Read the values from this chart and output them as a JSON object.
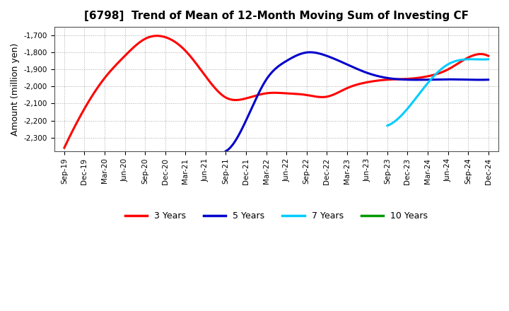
{
  "title": "[6798]  Trend of Mean of 12-Month Moving Sum of Investing CF",
  "ylabel": "Amount (million yen)",
  "ylim": [
    -2380,
    -1650
  ],
  "yticks": [
    -2300,
    -2200,
    -2100,
    -2000,
    -1900,
    -1800,
    -1700
  ],
  "background_color": "#ffffff",
  "grid_color": "#aaaaaa",
  "legend_labels": [
    "3 Years",
    "5 Years",
    "7 Years",
    "10 Years"
  ],
  "legend_colors": [
    "#ff0000",
    "#0000cc",
    "#00ccff",
    "#009900"
  ],
  "x_labels": [
    "Sep-19",
    "Dec-19",
    "Mar-20",
    "Jun-20",
    "Sep-20",
    "Dec-20",
    "Mar-21",
    "Jun-21",
    "Sep-21",
    "Dec-21",
    "Mar-22",
    "Jun-22",
    "Sep-22",
    "Dec-22",
    "Mar-23",
    "Jun-23",
    "Sep-23",
    "Dec-23",
    "Mar-24",
    "Jun-24",
    "Sep-24",
    "Dec-24"
  ],
  "series_3y_x": [
    0,
    1,
    2,
    3,
    4,
    5,
    6,
    7,
    8,
    9,
    10,
    11,
    12,
    13,
    14,
    15,
    16,
    17,
    18,
    19,
    20,
    21
  ],
  "series_3y_y": [
    -2360,
    -2130,
    -1950,
    -1820,
    -1720,
    -1710,
    -1790,
    -1940,
    -2065,
    -2070,
    -2040,
    -2040,
    -2050,
    -2060,
    -2010,
    -1975,
    -1960,
    -1955,
    -1940,
    -1900,
    -1830,
    -1820
  ],
  "series_5y_x": [
    8,
    9,
    10,
    11,
    12,
    13,
    14,
    15,
    16,
    17,
    18,
    19,
    20,
    21
  ],
  "series_5y_y": [
    -2380,
    -2200,
    -1960,
    -1850,
    -1800,
    -1820,
    -1870,
    -1920,
    -1950,
    -1960,
    -1960,
    -1958,
    -1960,
    -1960
  ],
  "series_7y_x": [
    16,
    17,
    18,
    19,
    20,
    21
  ],
  "series_7y_y": [
    -2230,
    -2130,
    -1980,
    -1870,
    -1840,
    -1840
  ],
  "series_10y_x": [],
  "series_10y_y": []
}
